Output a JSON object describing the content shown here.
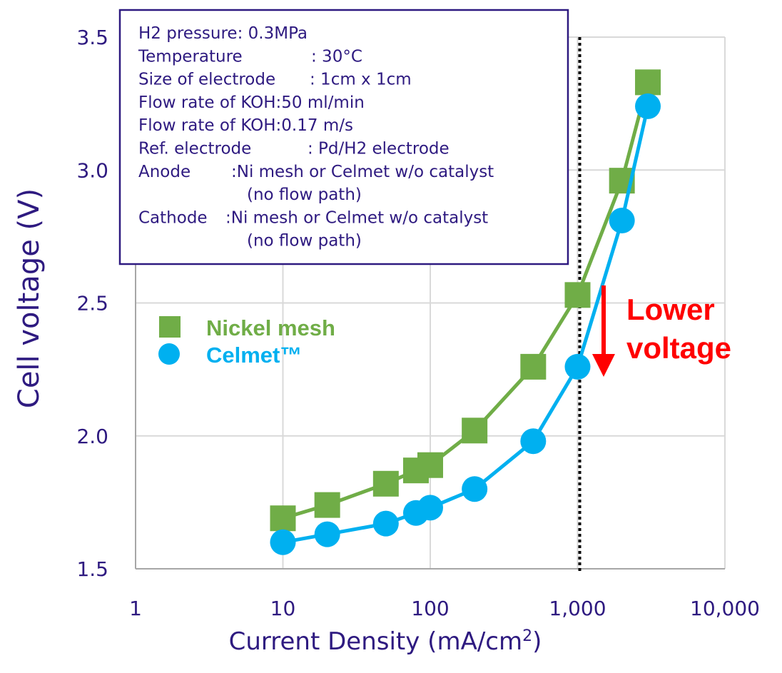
{
  "chart_data": {
    "type": "scatter",
    "xlabel": "Current Density (mA/cm",
    "xlabel_sup": "2",
    "xlabel_tail": ")",
    "ylabel": "Cell voltage (V)",
    "x_scale": "log",
    "xlim": [
      1,
      10000
    ],
    "ylim": [
      1.5,
      3.5
    ],
    "x_ticks": [
      {
        "value": 1,
        "label": "1"
      },
      {
        "value": 10,
        "label": "10"
      },
      {
        "value": 100,
        "label": "100"
      },
      {
        "value": 1000,
        "label": "1,000"
      },
      {
        "value": 10000,
        "label": "10,000"
      }
    ],
    "y_ticks": [
      {
        "value": 1.5,
        "label": "1.5"
      },
      {
        "value": 2.0,
        "label": "2.0"
      },
      {
        "value": 2.5,
        "label": "2.5"
      },
      {
        "value": 3.0,
        "label": "3.0"
      },
      {
        "value": 3.5,
        "label": "3.5"
      }
    ],
    "grid": true,
    "legend_position": "center-left",
    "series": [
      {
        "name": "Nickel mesh",
        "color": "#70ad47",
        "marker": "square",
        "x": [
          10,
          20,
          50,
          80,
          100,
          200,
          500,
          1000,
          2000,
          3000
        ],
        "y": [
          1.69,
          1.74,
          1.82,
          1.87,
          1.89,
          2.02,
          2.26,
          2.53,
          2.96,
          3.33
        ]
      },
      {
        "name": "Celmet™",
        "color": "#00b0f0",
        "marker": "circle",
        "x": [
          10,
          20,
          50,
          80,
          100,
          200,
          500,
          1000,
          2000,
          3000
        ],
        "y": [
          1.6,
          1.63,
          1.67,
          1.71,
          1.73,
          1.8,
          1.98,
          2.26,
          2.81,
          3.24
        ]
      }
    ],
    "reference_line": {
      "x": 1000,
      "style": "dotted",
      "color": "#000000"
    },
    "annotation": {
      "lines": [
        "Lower",
        "voltage"
      ],
      "color": "#ff0000"
    },
    "conditions_box": {
      "border_color": "#2e1a80",
      "lines": [
        {
          "label": "H2 pressure",
          "value": ": 0.3MPa"
        },
        {
          "label": "Temperature",
          "value": ": 30°C"
        },
        {
          "label": "Size of electrode",
          "value": ": 1cm x 1cm"
        },
        {
          "label": "Flow rate of KOH",
          "value": ":50 ml/min"
        },
        {
          "label": "Flow rate of KOH",
          "value": ":0.17 m/s"
        },
        {
          "label": "Ref. electrode",
          "value": ": Pd/H2 electrode"
        },
        {
          "label": "Anode",
          "value": ":Ni mesh or Celmet w/o catalyst"
        },
        {
          "label": "",
          "value": "(no flow path)"
        },
        {
          "label": "Cathode",
          "value": ":Ni mesh or Celmet w/o catalyst"
        },
        {
          "label": "",
          "value": "(no flow path)"
        }
      ]
    }
  }
}
